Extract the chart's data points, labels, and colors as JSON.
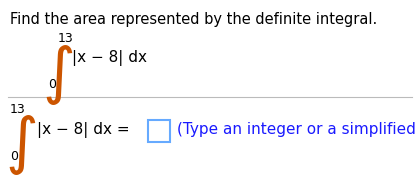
{
  "title": "Find the area represented by the definite integral.",
  "title_color": "#000000",
  "title_fontsize": 10.5,
  "bg_color": "#ffffff",
  "upper_limit": "13",
  "lower_limit": "0",
  "integrand": "|x − 8| dx",
  "integral_color": "#cc5500",
  "text_color": "#000000",
  "blue_color": "#1a1aff",
  "answer_line_color": "#bbbbbb",
  "section2_hint": "(Type an integer or a simplified fraction.)",
  "box_edge_color": "#66aaff",
  "integral_fontsize": 32,
  "limit_fontsize": 9,
  "integrand_fontsize": 11.0
}
